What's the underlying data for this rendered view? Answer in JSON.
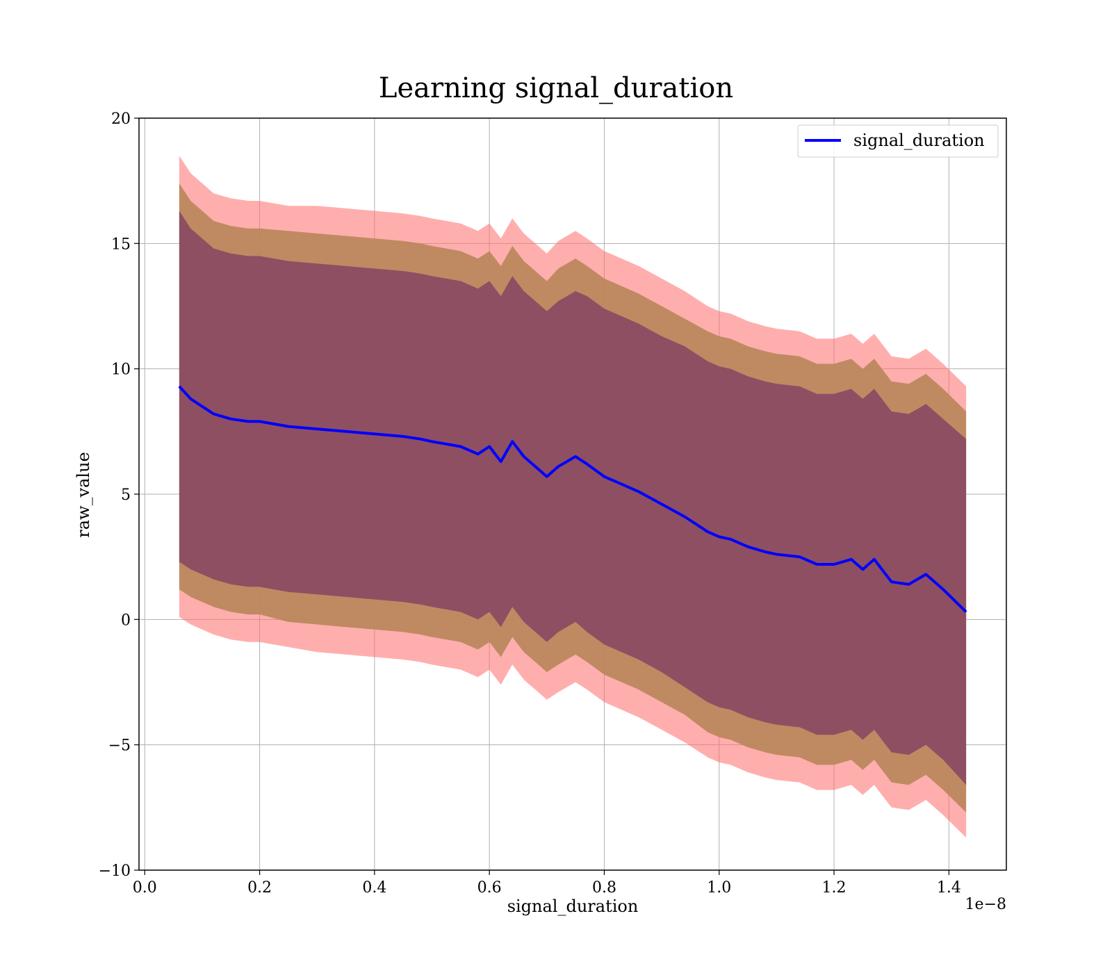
{
  "chart_data": {
    "type": "line",
    "title": "Learning signal_duration",
    "xlabel": "signal_duration",
    "ylabel": "raw_value",
    "x_offset_label": "1e−8",
    "xlim": [
      -0.01,
      1.5
    ],
    "ylim": [
      -10,
      20
    ],
    "x_ticks": [
      0.0,
      0.2,
      0.4,
      0.6,
      0.8,
      1.0,
      1.2,
      1.4
    ],
    "x_tick_labels": [
      "0.0",
      "0.2",
      "0.4",
      "0.6",
      "0.8",
      "1.0",
      "1.2",
      "1.4"
    ],
    "y_ticks": [
      -10,
      -5,
      0,
      5,
      10,
      15,
      20
    ],
    "y_tick_labels": [
      "−10",
      "−5",
      "0",
      "5",
      "10",
      "15",
      "20"
    ],
    "grid": true,
    "legend_position": "top-right",
    "colors": {
      "line": "#0000ff",
      "band_outer": "#ff6b6b",
      "band_middle": "#b8865a",
      "band_inner": "#8a4a63"
    },
    "series": [
      {
        "name": "signal_duration",
        "x": [
          0.06,
          0.08,
          0.1,
          0.12,
          0.15,
          0.18,
          0.2,
          0.25,
          0.3,
          0.35,
          0.4,
          0.45,
          0.48,
          0.5,
          0.55,
          0.58,
          0.6,
          0.62,
          0.64,
          0.66,
          0.68,
          0.7,
          0.72,
          0.75,
          0.77,
          0.8,
          0.83,
          0.86,
          0.9,
          0.94,
          0.98,
          1.0,
          1.02,
          1.05,
          1.08,
          1.1,
          1.14,
          1.17,
          1.2,
          1.23,
          1.25,
          1.27,
          1.3,
          1.33,
          1.36,
          1.39,
          1.43
        ],
        "values": [
          9.3,
          8.8,
          8.5,
          8.2,
          8.0,
          7.9,
          7.9,
          7.7,
          7.6,
          7.5,
          7.4,
          7.3,
          7.2,
          7.1,
          6.9,
          6.6,
          6.9,
          6.3,
          7.1,
          6.5,
          6.1,
          5.7,
          6.1,
          6.5,
          6.2,
          5.7,
          5.4,
          5.1,
          4.6,
          4.1,
          3.5,
          3.3,
          3.2,
          2.9,
          2.7,
          2.6,
          2.5,
          2.2,
          2.2,
          2.4,
          2.0,
          2.4,
          1.5,
          1.4,
          1.8,
          1.2,
          0.3
        ],
        "band_half_widths": {
          "inner": [
            7.0,
            6.8,
            6.7,
            6.6,
            6.6,
            6.6,
            6.6,
            6.6,
            6.6,
            6.6,
            6.6,
            6.6,
            6.6,
            6.6,
            6.6,
            6.6,
            6.6,
            6.6,
            6.6,
            6.6,
            6.6,
            6.6,
            6.6,
            6.6,
            6.7,
            6.7,
            6.7,
            6.7,
            6.7,
            6.8,
            6.8,
            6.8,
            6.8,
            6.8,
            6.8,
            6.8,
            6.8,
            6.8,
            6.8,
            6.8,
            6.8,
            6.8,
            6.8,
            6.8,
            6.8,
            6.8,
            6.9
          ],
          "middle": [
            8.1,
            7.9,
            7.8,
            7.7,
            7.7,
            7.7,
            7.7,
            7.8,
            7.8,
            7.8,
            7.8,
            7.8,
            7.8,
            7.8,
            7.8,
            7.8,
            7.8,
            7.8,
            7.8,
            7.8,
            7.8,
            7.8,
            7.9,
            7.9,
            7.9,
            7.9,
            7.9,
            7.9,
            7.9,
            7.9,
            8.0,
            8.0,
            8.0,
            8.0,
            8.0,
            8.0,
            8.0,
            8.0,
            8.0,
            8.0,
            8.0,
            8.0,
            8.0,
            8.0,
            8.0,
            8.0,
            8.0
          ],
          "outer": [
            9.2,
            9.0,
            8.9,
            8.8,
            8.8,
            8.8,
            8.8,
            8.8,
            8.9,
            8.9,
            8.9,
            8.9,
            8.9,
            8.9,
            8.9,
            8.9,
            8.9,
            8.9,
            8.9,
            8.9,
            8.9,
            8.9,
            9.0,
            9.0,
            9.0,
            9.0,
            9.0,
            9.0,
            9.0,
            9.0,
            9.0,
            9.0,
            9.0,
            9.0,
            9.0,
            9.0,
            9.0,
            9.0,
            9.0,
            9.0,
            9.0,
            9.0,
            9.0,
            9.0,
            9.0,
            9.0,
            9.0
          ]
        }
      }
    ]
  }
}
